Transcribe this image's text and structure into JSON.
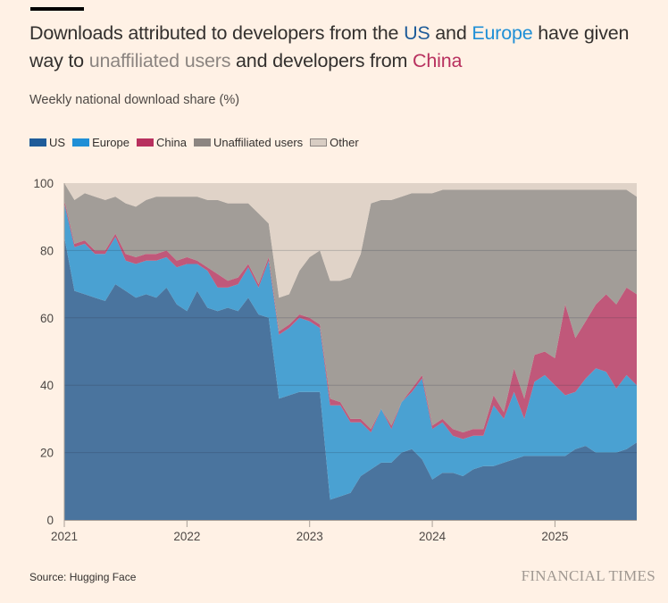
{
  "title": {
    "part1": "Downloads attributed to developers from the ",
    "us": "US",
    "part2": " and ",
    "europe": "Europe",
    "part3": " have given way to ",
    "unaffiliated": "unaffiliated users",
    "part4": " and developers from ",
    "china": "China"
  },
  "subtitle": "Weekly national download share (%)",
  "source": "Source: Hugging Face",
  "brand": "FINANCIAL TIMES",
  "colors": {
    "background": "#fff1e5",
    "US": "#4a749e",
    "Europe": "#4aa1d2",
    "China": "#c0587a",
    "Unaffiliated users": "#a29d98",
    "Other": "#e0d3c8"
  },
  "legend_colors": {
    "US": "#1f5c99",
    "Europe": "#1f8fd6",
    "China": "#b8305e",
    "Unaffiliated users": "#8c8581",
    "Other": "#d8cdc3"
  },
  "chart_data": {
    "type": "area",
    "stacked": true,
    "title": "Downloads attributed to developers from the US and Europe have given way to unaffiliated users and developers from China",
    "ylabel": "Weekly national download share (%)",
    "xlabel": "",
    "ylim": [
      0,
      100
    ],
    "yticks": [
      "0",
      "20",
      "40",
      "60",
      "80",
      "100"
    ],
    "xlim": [
      "2021-01",
      "2025-09"
    ],
    "xticks": [
      "2021",
      "2022",
      "2023",
      "2024",
      "2025"
    ],
    "grid": true,
    "legend_position": "top-left",
    "x": [
      "2021-01",
      "2021-02",
      "2021-03",
      "2021-04",
      "2021-05",
      "2021-06",
      "2021-07",
      "2021-08",
      "2021-09",
      "2021-10",
      "2021-11",
      "2021-12",
      "2022-01",
      "2022-02",
      "2022-03",
      "2022-04",
      "2022-05",
      "2022-06",
      "2022-07",
      "2022-08",
      "2022-09",
      "2022-10",
      "2022-11",
      "2022-12",
      "2023-01",
      "2023-02",
      "2023-03",
      "2023-04",
      "2023-05",
      "2023-06",
      "2023-07",
      "2023-08",
      "2023-09",
      "2023-10",
      "2023-11",
      "2023-12",
      "2024-01",
      "2024-02",
      "2024-03",
      "2024-04",
      "2024-05",
      "2024-06",
      "2024-07",
      "2024-08",
      "2024-09",
      "2024-10",
      "2024-11",
      "2024-12",
      "2025-01",
      "2025-02",
      "2025-03",
      "2025-04",
      "2025-05",
      "2025-06",
      "2025-07",
      "2025-08",
      "2025-09"
    ],
    "series": [
      {
        "name": "US",
        "values": [
          84,
          68,
          67,
          66,
          65,
          70,
          68,
          66,
          67,
          66,
          69,
          64,
          62,
          68,
          63,
          62,
          63,
          62,
          66,
          61,
          60,
          36,
          37,
          38,
          38,
          38,
          6,
          7,
          8,
          13,
          15,
          17,
          17,
          20,
          21,
          18,
          12,
          14,
          14,
          13,
          15,
          16,
          16,
          17,
          18,
          19,
          19,
          19,
          19,
          19,
          21,
          22,
          20,
          20,
          20,
          21,
          23
        ]
      },
      {
        "name": "Europe",
        "values": [
          10,
          13,
          15,
          13,
          14,
          14,
          9,
          10,
          10,
          11,
          9,
          11,
          14,
          8,
          11,
          7,
          6,
          8,
          9,
          8,
          17,
          19,
          20,
          22,
          21,
          19,
          28,
          27,
          21,
          16,
          11,
          16,
          10,
          15,
          17,
          24,
          15,
          15,
          11,
          11,
          10,
          9,
          18,
          13,
          20,
          11,
          22,
          24,
          21,
          18,
          17,
          20,
          25,
          24,
          19,
          22,
          17
        ]
      },
      {
        "name": "China",
        "values": [
          1,
          1,
          1,
          1,
          1,
          1,
          2,
          2,
          2,
          2,
          2,
          2,
          2,
          1,
          1,
          4,
          2,
          2,
          1,
          1,
          1,
          1,
          1,
          1,
          1,
          1,
          2,
          1,
          1,
          1,
          1,
          0,
          1,
          0,
          1,
          1,
          1,
          1,
          2,
          2,
          2,
          2,
          3,
          2,
          7,
          6,
          8,
          7,
          8,
          27,
          16,
          17,
          19,
          23,
          25,
          26,
          27
        ]
      },
      {
        "name": "Unaffiliated users",
        "values": [
          5,
          13,
          14,
          16,
          15,
          11,
          15,
          15,
          16,
          17,
          16,
          19,
          18,
          19,
          20,
          22,
          23,
          22,
          18,
          21,
          10,
          10,
          9,
          13,
          18,
          22,
          35,
          36,
          42,
          49,
          67,
          62,
          67,
          61,
          58,
          54,
          69,
          68,
          71,
          72,
          71,
          71,
          61,
          66,
          53,
          62,
          49,
          48,
          50,
          34,
          44,
          39,
          34,
          31,
          34,
          29,
          29
        ]
      },
      {
        "name": "Other",
        "values": [
          0,
          5,
          3,
          4,
          5,
          4,
          6,
          7,
          5,
          4,
          4,
          4,
          4,
          4,
          5,
          5,
          6,
          6,
          6,
          9,
          12,
          34,
          33,
          26,
          22,
          20,
          29,
          29,
          28,
          21,
          6,
          5,
          5,
          4,
          3,
          3,
          3,
          2,
          2,
          2,
          2,
          2,
          2,
          2,
          2,
          2,
          2,
          2,
          2,
          2,
          2,
          2,
          2,
          2,
          2,
          2,
          4
        ]
      }
    ]
  }
}
